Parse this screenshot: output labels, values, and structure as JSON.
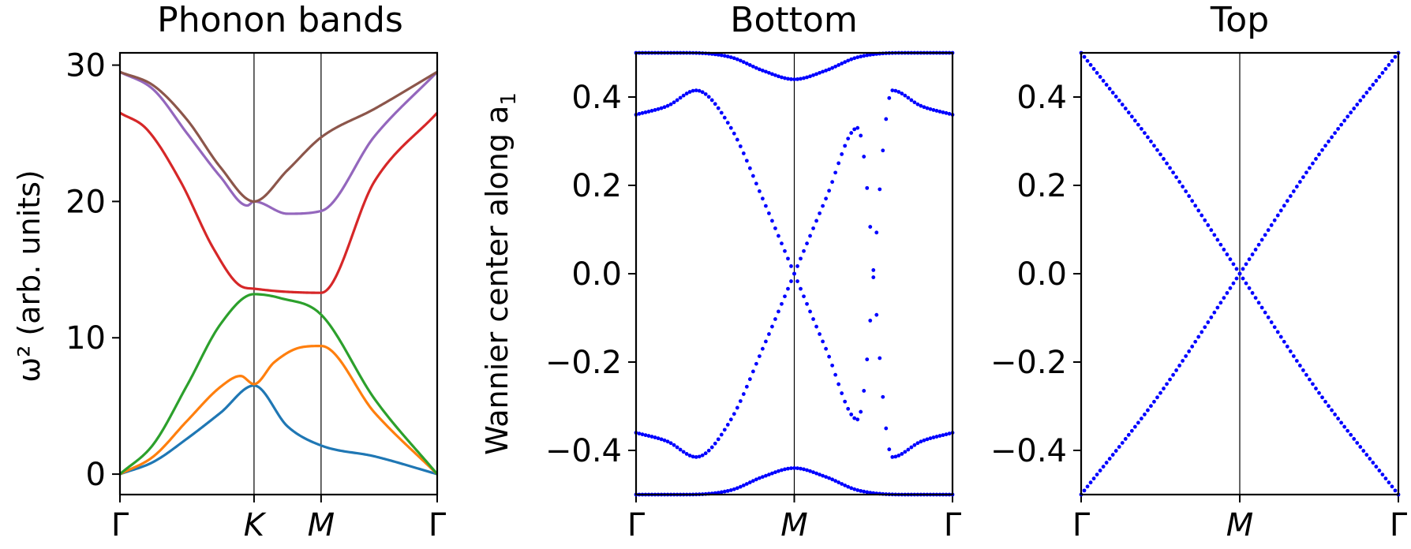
{
  "chart_data": [
    {
      "type": "line",
      "title": "Phonon bands",
      "ylabel": "ω² (arb. units)",
      "xlabel": "",
      "x_ticks": [
        "Γ",
        "K",
        "M",
        "Γ"
      ],
      "x_tick_positions": [
        0,
        1,
        1.5,
        2.366
      ],
      "xlim": [
        0,
        2.366
      ],
      "ylim": [
        -1.5,
        30.9
      ],
      "y_ticks": [
        0,
        10,
        20,
        30
      ],
      "grid": false,
      "vertical_lines_at": [
        "K",
        "M"
      ],
      "series": [
        {
          "color": "#1f77b4",
          "x": [
            0,
            0.25,
            0.5,
            0.75,
            1.0,
            1.25,
            1.5,
            1.9,
            2.366
          ],
          "y": [
            0,
            0.9,
            2.6,
            4.5,
            6.5,
            3.5,
            2.1,
            1.3,
            0
          ]
        },
        {
          "color": "#ff7f0e",
          "x": [
            0,
            0.25,
            0.5,
            0.75,
            0.9,
            1.0,
            1.15,
            1.35,
            1.5,
            1.9,
            2.366
          ],
          "y": [
            0,
            1.3,
            3.9,
            6.4,
            7.2,
            6.6,
            8.2,
            9.3,
            9.4,
            4.5,
            0
          ]
        },
        {
          "color": "#2ca02c",
          "x": [
            0,
            0.25,
            0.5,
            0.75,
            1.0,
            1.2,
            1.5,
            1.9,
            2.366
          ],
          "y": [
            0,
            2.2,
            6.5,
            11.0,
            13.2,
            12.9,
            11.7,
            5.5,
            0
          ]
        },
        {
          "color": "#d62728",
          "x": [
            0,
            0.2,
            0.45,
            0.7,
            0.9,
            1.0,
            1.2,
            1.5,
            1.9,
            2.366
          ],
          "y": [
            26.5,
            25.3,
            21.5,
            16.5,
            13.8,
            13.6,
            13.4,
            13.3,
            21.5,
            26.5
          ]
        },
        {
          "color": "#9467bd",
          "x": [
            0,
            0.25,
            0.5,
            0.75,
            0.95,
            1.0,
            1.25,
            1.5,
            1.9,
            2.366
          ],
          "y": [
            29.5,
            28.2,
            25.0,
            21.8,
            19.7,
            20.0,
            19.1,
            19.3,
            24.8,
            29.5
          ]
        },
        {
          "color": "#8c564b",
          "x": [
            0,
            0.25,
            0.5,
            0.75,
            1.0,
            1.25,
            1.5,
            1.9,
            2.366
          ],
          "y": [
            29.5,
            28.5,
            26.0,
            22.5,
            20.0,
            22.3,
            24.7,
            26.8,
            29.5
          ]
        }
      ]
    },
    {
      "type": "scatter",
      "title": "Bottom",
      "ylabel": "Wannier center along a",
      "ylabel_subscript": "1",
      "xlabel": "",
      "x_ticks": [
        "Γ",
        "M",
        "Γ"
      ],
      "x_tick_positions": [
        0,
        0.5,
        1
      ],
      "xlim": [
        0,
        1
      ],
      "ylim": [
        -0.5,
        0.5
      ],
      "y_ticks": [
        -0.4,
        -0.2,
        0.0,
        0.2,
        0.4
      ],
      "y_tick_labels": [
        "−0.4",
        "−0.2",
        "0.0",
        "0.2",
        "0.4"
      ],
      "vertical_lines_at": [
        "M"
      ],
      "grid": false,
      "marker_color": "#0000ff",
      "num_k_points": 101,
      "series": [
        {
          "name_hint": "upper",
          "k": [
            0,
            0.1,
            0.19,
            0.3,
            0.4,
            0.5,
            0.6,
            0.7,
            0.81,
            0.9,
            1.0
          ],
          "y": [
            0.36,
            0.38,
            0.415,
            0.33,
            0.17,
            0.0,
            -0.17,
            -0.33,
            0.415,
            0.38,
            0.36
          ]
        },
        {
          "name_hint": "lower",
          "k": [
            0,
            0.1,
            0.19,
            0.3,
            0.4,
            0.5,
            0.6,
            0.7,
            0.81,
            0.9,
            1.0
          ],
          "y": [
            -0.36,
            -0.38,
            -0.415,
            -0.33,
            -0.17,
            0.0,
            0.17,
            0.33,
            -0.415,
            -0.38,
            -0.36
          ]
        },
        {
          "name_hint": "edge-top",
          "k": [
            0,
            0.15,
            0.3,
            0.4,
            0.5,
            0.6,
            0.7,
            0.85,
            1.0
          ],
          "y": [
            0.5,
            0.5,
            0.49,
            0.46,
            0.44,
            0.46,
            0.49,
            0.5,
            0.5
          ]
        },
        {
          "name_hint": "edge-bottom",
          "k": [
            0,
            0.15,
            0.3,
            0.4,
            0.5,
            0.6,
            0.7,
            0.85,
            1.0
          ],
          "y": [
            -0.5,
            -0.5,
            -0.49,
            -0.46,
            -0.44,
            -0.46,
            -0.49,
            -0.5,
            -0.5
          ]
        }
      ]
    },
    {
      "type": "scatter",
      "title": "Top",
      "xlabel": "",
      "ylabel": "",
      "x_ticks": [
        "Γ",
        "M",
        "Γ"
      ],
      "x_tick_positions": [
        0,
        0.5,
        1
      ],
      "xlim": [
        0,
        1
      ],
      "ylim": [
        -0.5,
        0.5
      ],
      "y_ticks": [
        -0.4,
        -0.2,
        0.0,
        0.2,
        0.4
      ],
      "y_tick_labels": [
        "−0.4",
        "−0.2",
        "0.0",
        "0.2",
        "0.4"
      ],
      "vertical_lines_at": [
        "M"
      ],
      "grid": false,
      "marker_color": "#0000ff",
      "num_k_points": 101,
      "series": [
        {
          "name_hint": "descending",
          "k": [
            0,
            0.25,
            0.5,
            0.75,
            1.0
          ],
          "y": [
            0.5,
            0.27,
            0.0,
            -0.27,
            -0.5
          ]
        },
        {
          "name_hint": "ascending",
          "k": [
            0,
            0.25,
            0.5,
            0.75,
            1.0
          ],
          "y": [
            -0.5,
            -0.27,
            0.0,
            0.27,
            0.5
          ]
        }
      ]
    }
  ]
}
